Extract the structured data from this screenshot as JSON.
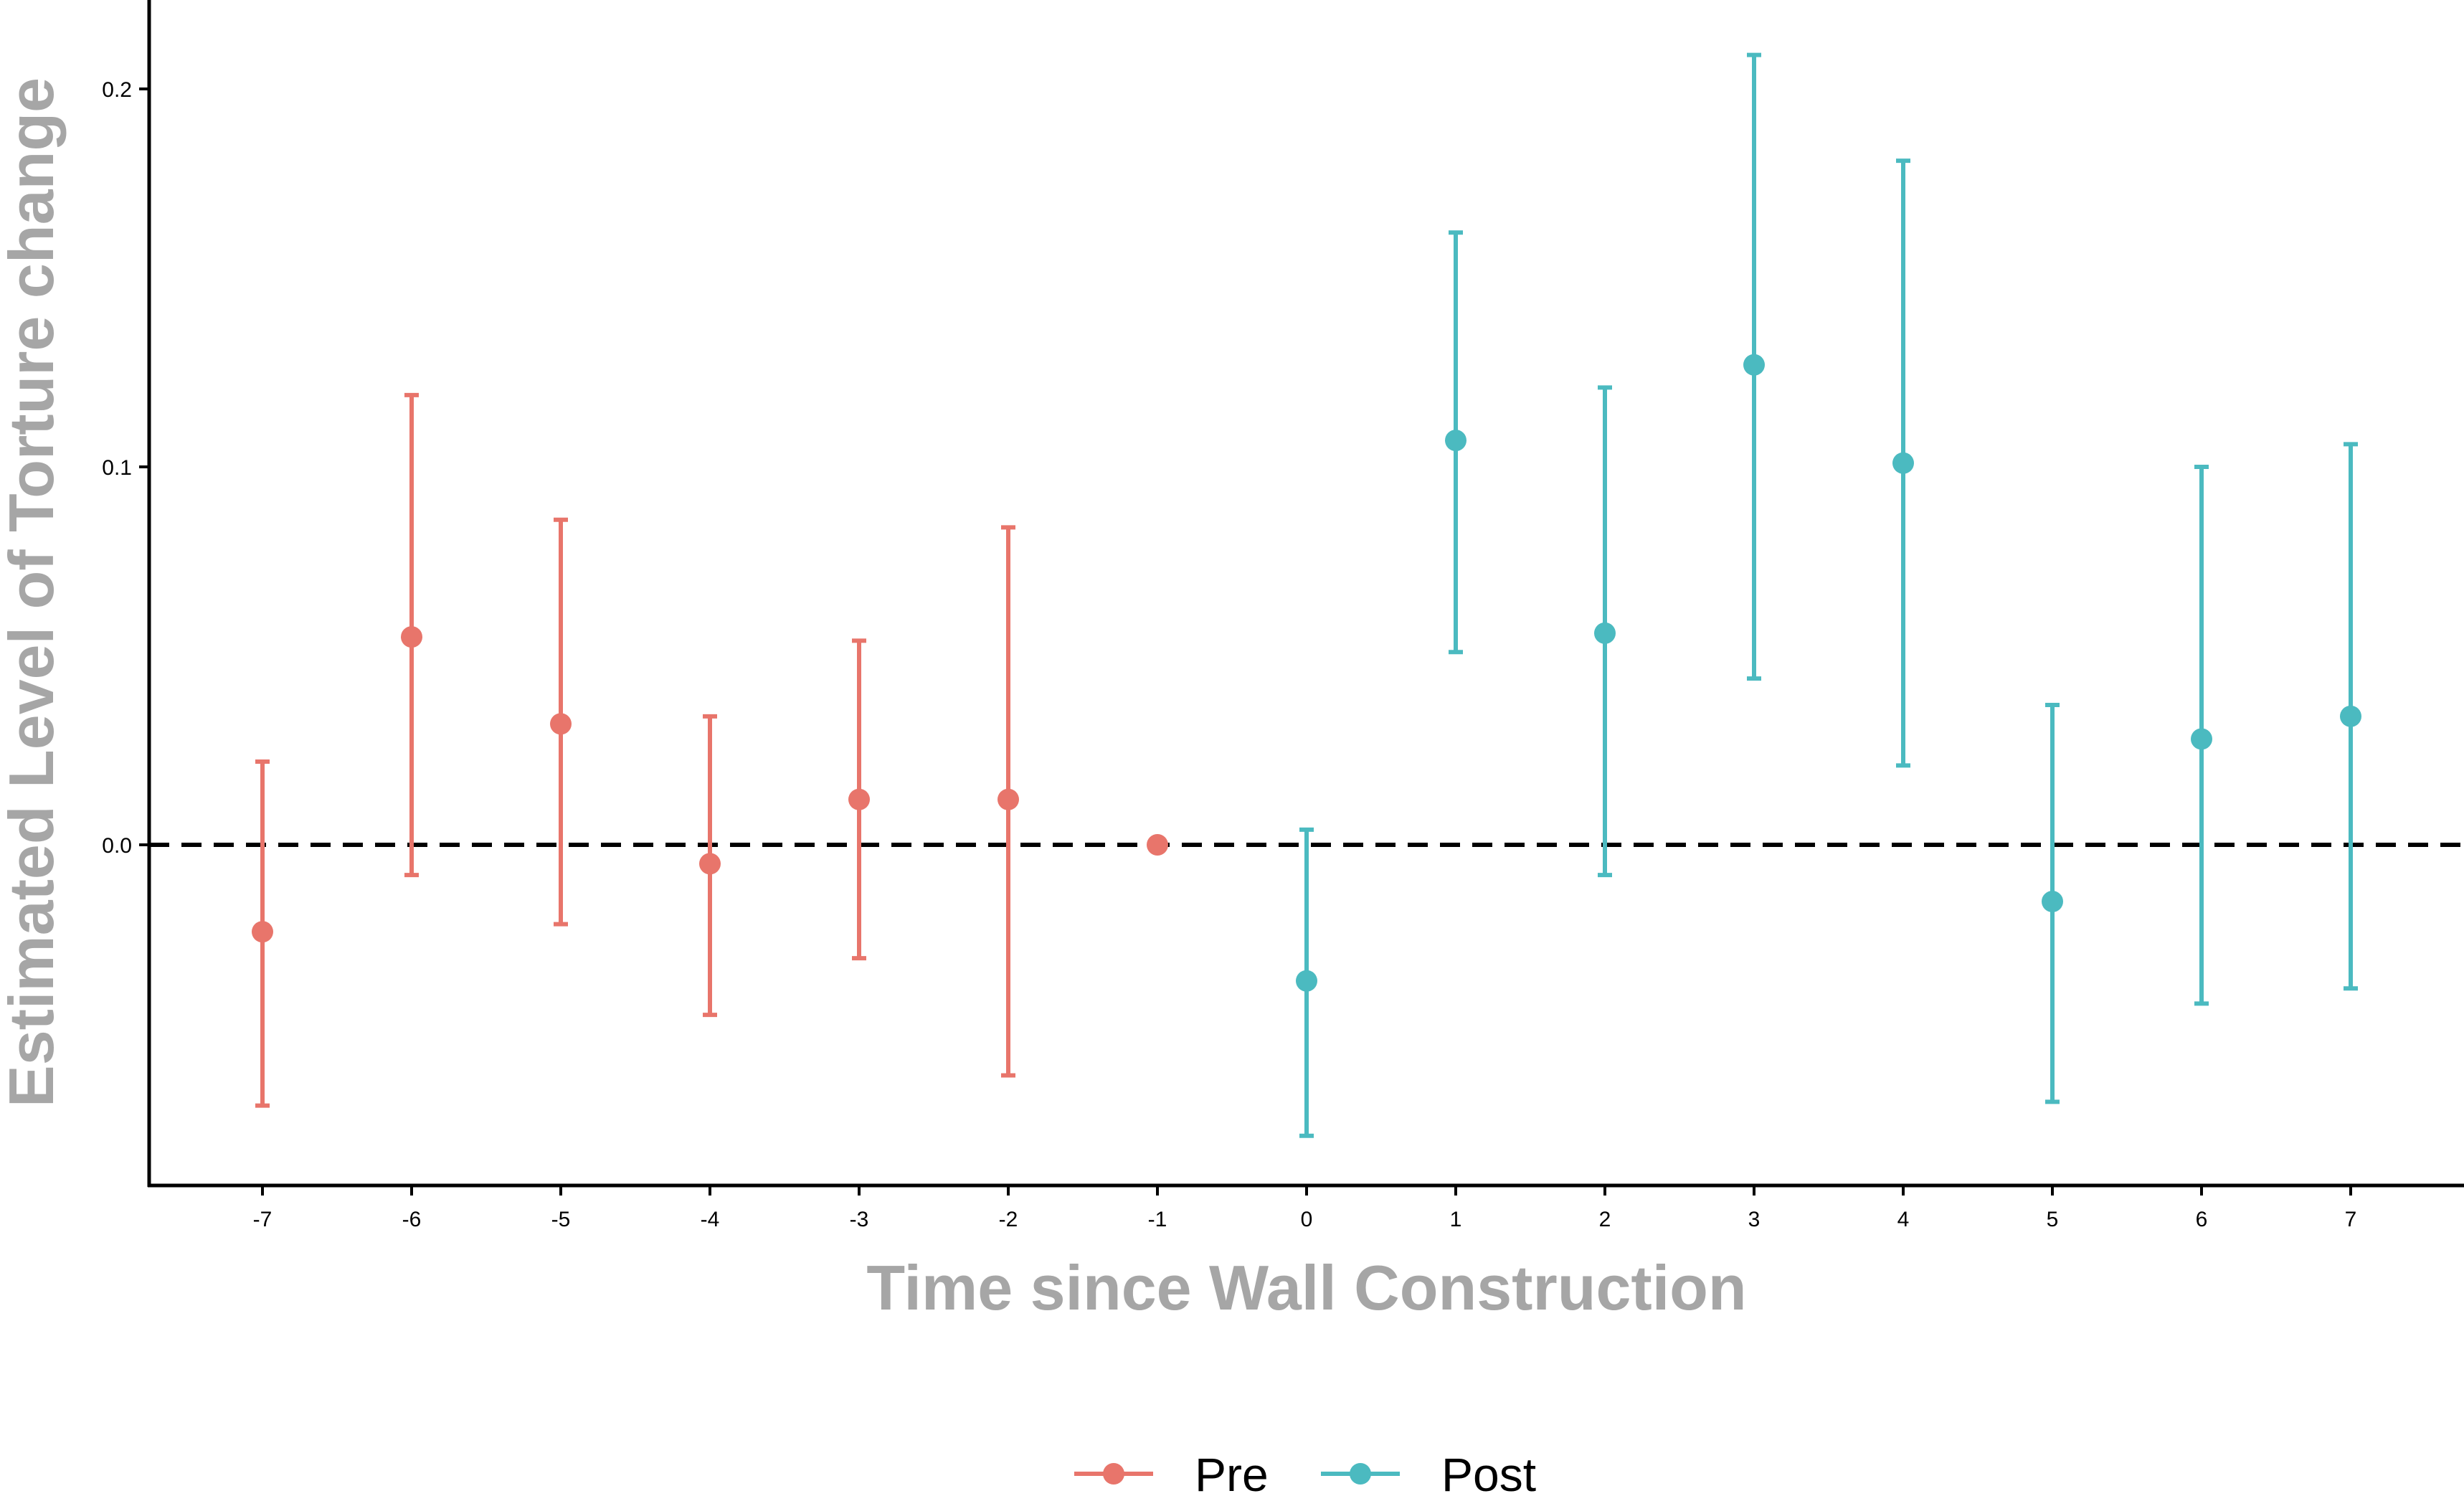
{
  "chart_data": {
    "type": "scatter",
    "subtype": "point-with-error-bars",
    "title": "",
    "xlabel": "Time since Wall Construction",
    "ylabel": "Estimated Level of Torture change",
    "x_ticks": [
      "-7",
      "-6",
      "-5",
      "-4",
      "-3",
      "-2",
      "-1",
      "0",
      "1",
      "2",
      "3",
      "4",
      "5",
      "6",
      "7"
    ],
    "y_ticks": [
      "0.0",
      "0.1",
      "0.2"
    ],
    "ylim": [
      -0.09,
      0.225
    ],
    "xlim": [
      -7.75,
      7.75
    ],
    "grid": false,
    "reference_line": {
      "y": 0.0,
      "style": "dashed",
      "color": "#000000"
    },
    "legend": {
      "position": "bottom"
    },
    "series": [
      {
        "name": "Pre",
        "color": "#e8756b",
        "points": [
          {
            "x": -7,
            "y": -0.023,
            "lo": -0.069,
            "hi": 0.022
          },
          {
            "x": -6,
            "y": 0.055,
            "lo": -0.008,
            "hi": 0.119
          },
          {
            "x": -5,
            "y": 0.032,
            "lo": -0.021,
            "hi": 0.086
          },
          {
            "x": -4,
            "y": -0.005,
            "lo": -0.045,
            "hi": 0.034
          },
          {
            "x": -3,
            "y": 0.012,
            "lo": -0.03,
            "hi": 0.054
          },
          {
            "x": -2,
            "y": 0.012,
            "lo": -0.061,
            "hi": 0.084
          },
          {
            "x": -1,
            "y": 0.0,
            "lo": 0.0,
            "hi": 0.0
          }
        ]
      },
      {
        "name": "Post",
        "color": "#4bbac0",
        "points": [
          {
            "x": 0,
            "y": -0.036,
            "lo": -0.077,
            "hi": 0.004
          },
          {
            "x": 1,
            "y": 0.107,
            "lo": 0.051,
            "hi": 0.162
          },
          {
            "x": 2,
            "y": 0.056,
            "lo": -0.008,
            "hi": 0.121
          },
          {
            "x": 3,
            "y": 0.127,
            "lo": 0.044,
            "hi": 0.209
          },
          {
            "x": 4,
            "y": 0.101,
            "lo": 0.021,
            "hi": 0.181
          },
          {
            "x": 5,
            "y": -0.015,
            "lo": -0.068,
            "hi": 0.037
          },
          {
            "x": 6,
            "y": 0.028,
            "lo": -0.042,
            "hi": 0.1
          },
          {
            "x": 7,
            "y": 0.034,
            "lo": -0.038,
            "hi": 0.106
          }
        ]
      }
    ]
  }
}
